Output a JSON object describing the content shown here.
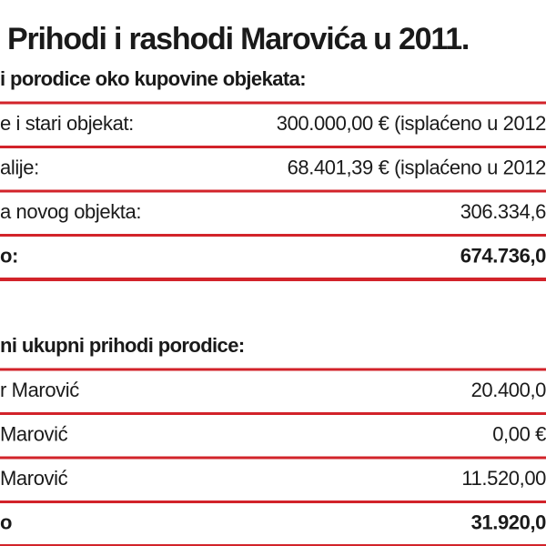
{
  "title": "Prihodi i rashodi Marovića u 2011.",
  "sections": [
    {
      "heading": "i porodice oko kupovine objekata:",
      "rows": [
        [
          "e i stari objekat:",
          "300.000,00 € (isplaćeno u 2012"
        ],
        [
          "alije:",
          "68.401,39 € (isplaćeno u 2012"
        ],
        [
          "a novog objekta:",
          "306.334,6"
        ],
        [
          "o:",
          "674.736,0"
        ]
      ]
    },
    {
      "heading": "ni ukupni prihodi porodice:",
      "rows": [
        [
          "r Marović",
          "20.400,0"
        ],
        [
          "Marović",
          "0,00 €"
        ],
        [
          "Marović",
          "11.520,00"
        ],
        [
          "o",
          "31.920,0"
        ]
      ]
    }
  ]
}
